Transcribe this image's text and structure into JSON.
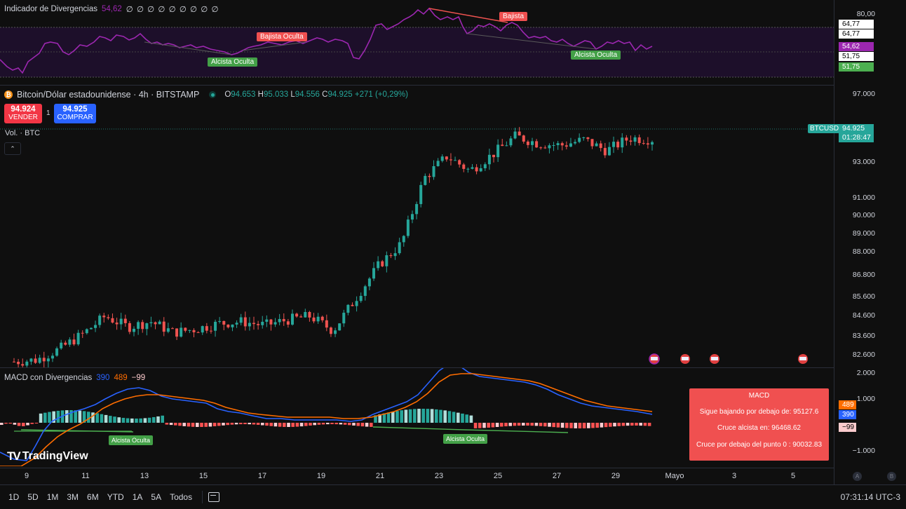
{
  "rsi_pane": {
    "title": "Indicador de Divergencias",
    "value": "54,62",
    "placeholders": "∅ ∅ ∅ ∅ ∅ ∅ ∅ ∅ ∅",
    "axis_labels": [
      "80,00"
    ],
    "tags": [
      {
        "text": "64,77",
        "bg": "#ffffff",
        "fg": "#000000"
      },
      {
        "text": "64,77",
        "bg": "#ffffff",
        "fg": "#000000"
      },
      {
        "text": "54,62",
        "bg": "#9c27b0",
        "fg": "#ffffff"
      },
      {
        "text": "51,75",
        "bg": "#ffffff",
        "fg": "#000000"
      },
      {
        "text": "51,75",
        "bg": "#4caf50",
        "fg": "#ffffff"
      }
    ],
    "labels": {
      "bajista": "Bajista",
      "bajista_oculta": "Bajista Oculta",
      "alcista_oculta_1": "Alcista Oculta",
      "alcista_oculta_2": "Alcista Oculta"
    }
  },
  "symbol": {
    "name": "Bitcoin/Dólar estadounidense · 4h · BITSTAMP",
    "o_label": "O",
    "o": "94.653",
    "h_label": "H",
    "h": "95.033",
    "l_label": "L",
    "l": "94.556",
    "c_label": "C",
    "c": "94.925",
    "change": "+271 (+0,29%)",
    "sell_price": "94.924",
    "sell_label": "VENDER",
    "spread": "1",
    "buy_price": "94.925",
    "buy_label": "COMPRAR",
    "volume_label": "Vol. · BTC",
    "ticker_tag": "BTCUSD",
    "price_tag": "94.925",
    "countdown": "01:28:47"
  },
  "price_axis": [
    "97.000",
    "93.000",
    "91.000",
    "90.000",
    "89.000",
    "88.000",
    "86.800",
    "85.600",
    "84.600",
    "83.600",
    "82.600"
  ],
  "macd_pane": {
    "title": "MACD con Divergencias",
    "v1": "390",
    "v2": "489",
    "v3": "−99",
    "axis_labels": [
      "2.000",
      "1.000",
      "−1.000"
    ],
    "tags": [
      {
        "text": "489",
        "bg": "#ff6d00",
        "fg": "#ffffff"
      },
      {
        "text": "390",
        "bg": "#2962ff",
        "fg": "#ffffff"
      },
      {
        "text": "−99",
        "bg": "#fccbcd",
        "fg": "#000000"
      }
    ],
    "labels": {
      "alcista_oculta_1": "Alcista Oculta",
      "alcista_oculta_2": "Alcista Oculta"
    },
    "info_box": {
      "title": "MACD",
      "line1": "Sigue bajando por debajo de: 95127.6",
      "line2": "Cruce alcista en: 96468.62",
      "line3": "Cruce por debajo del punto 0 : 90032.83"
    }
  },
  "time_axis": [
    "9",
    "11",
    "13",
    "15",
    "17",
    "19",
    "21",
    "23",
    "25",
    "27",
    "29",
    "Mayo",
    "3",
    "5"
  ],
  "timeframes": [
    "1D",
    "5D",
    "1M",
    "3M",
    "6M",
    "YTD",
    "1A",
    "5A",
    "Todos"
  ],
  "clock": "07:31:14 UTC-3",
  "logo_text": "TradingView",
  "colors": {
    "up": "#26a69a",
    "down": "#ef5350",
    "rsi": "#9c27b0",
    "macd": "#2962ff",
    "signal": "#ff6d00"
  },
  "chart_data": {
    "type": "candlestick",
    "title": "Bitcoin/Dólar estadounidense · 4h · BITSTAMP",
    "x": [
      "9",
      "11",
      "13",
      "15",
      "17",
      "19",
      "21",
      "23",
      "25",
      "27",
      "29"
    ],
    "ylim": [
      82000,
      97500
    ],
    "close_series_approx": [
      82700,
      82800,
      83400,
      84200,
      85200,
      84600,
      84900,
      84300,
      84500,
      84800,
      84900,
      84700,
      85000,
      85200,
      84400,
      86200,
      88000,
      89200,
      92800,
      94000,
      93200,
      94100,
      95100,
      94700,
      94600,
      94900,
      94300,
      95000,
      94925
    ],
    "last_close": 94925,
    "rsi_ylim": [
      45,
      82
    ],
    "macd_ylim": [
      -1300,
      2000
    ]
  }
}
